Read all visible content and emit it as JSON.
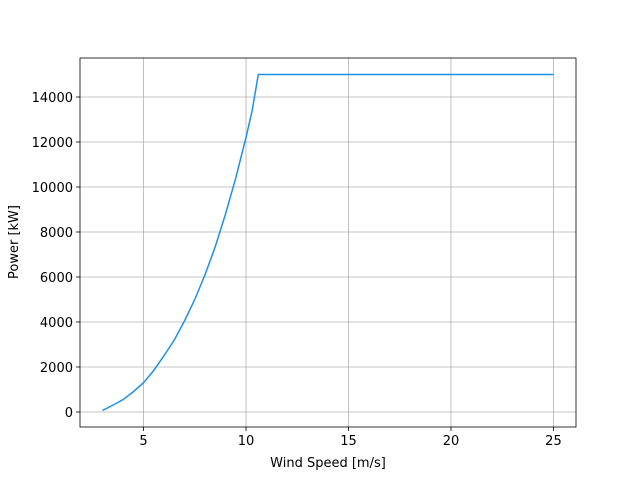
{
  "chart_data": {
    "type": "line",
    "xlabel": "Wind Speed [m/s]",
    "ylabel": "Power [kW]",
    "x": [
      3,
      3.5,
      4,
      4.5,
      5,
      5.5,
      6,
      6.5,
      7,
      7.5,
      8,
      8.5,
      9,
      9.5,
      10,
      10.3,
      10.6,
      11,
      12,
      13,
      14,
      15,
      16,
      17,
      18,
      19,
      20,
      21,
      22,
      23,
      24,
      25
    ],
    "series": [
      {
        "name": "Power",
        "color": "#1e90e8",
        "values": [
          70,
          300,
          550,
          900,
          1300,
          1850,
          2500,
          3200,
          4050,
          5000,
          6100,
          7350,
          8800,
          10400,
          12200,
          13400,
          15000,
          15000,
          15000,
          15000,
          15000,
          15000,
          15000,
          15000,
          15000,
          15000,
          15000,
          15000,
          15000,
          15000,
          15000,
          15000
        ]
      }
    ],
    "xlim": [
      1.9,
      26.1
    ],
    "ylim": [
      -667,
      15733
    ],
    "xticks": [
      5,
      10,
      15,
      20,
      25
    ],
    "yticks": [
      0,
      2000,
      4000,
      6000,
      8000,
      10000,
      12000,
      14000
    ],
    "grid": true
  }
}
